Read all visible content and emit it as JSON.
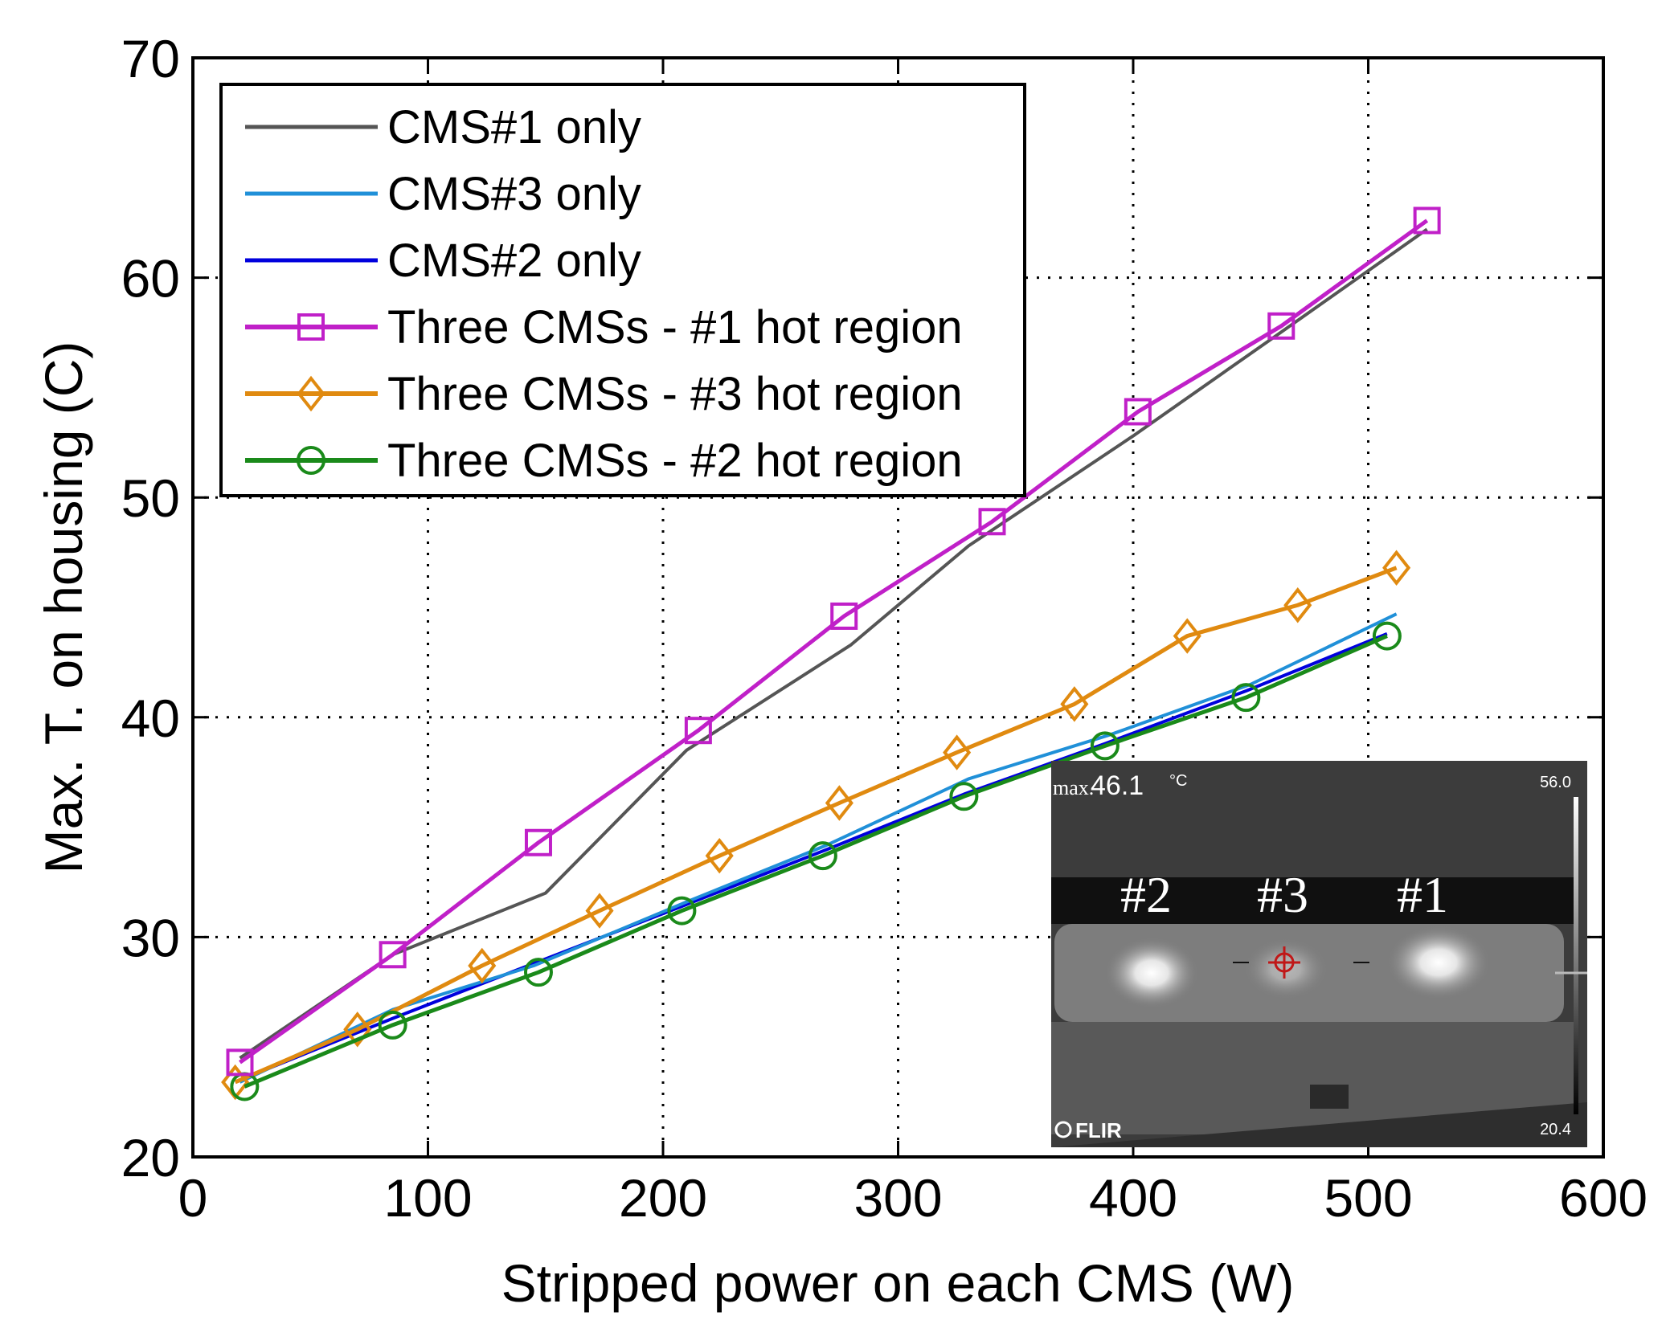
{
  "chart_data": {
    "type": "line",
    "title": "",
    "xlabel": "Stripped power on each CMS (W)",
    "ylabel": "Max. T. on housing (C)",
    "xlim": [
      0,
      600
    ],
    "ylim": [
      20,
      70
    ],
    "xticks": [
      0,
      100,
      200,
      300,
      400,
      500,
      600
    ],
    "yticks": [
      20,
      30,
      40,
      50,
      60,
      70
    ],
    "grid": true,
    "legend_position": "top-left",
    "series": [
      {
        "name": "CMS#1 only",
        "color": "#555555",
        "marker": "none",
        "x": [
          20,
          85,
          150,
          210,
          280,
          330,
          400,
          460,
          525
        ],
        "y": [
          24.5,
          29.2,
          32.0,
          38.5,
          43.3,
          47.8,
          52.8,
          57.3,
          62.2
        ]
      },
      {
        "name": "CMS#3 only",
        "color": "#2090d8",
        "marker": "none",
        "x": [
          20,
          85,
          145,
          210,
          270,
          330,
          390,
          450,
          512
        ],
        "y": [
          23.4,
          26.7,
          28.7,
          31.6,
          34.2,
          37.2,
          39.2,
          41.5,
          44.7
        ]
      },
      {
        "name": "CMS#2 only",
        "color": "#0000dd",
        "marker": "none",
        "x": [
          20,
          85,
          145,
          208,
          270,
          328,
          388,
          448,
          508
        ],
        "y": [
          23.5,
          26.3,
          28.8,
          31.4,
          34.0,
          36.5,
          38.8,
          41.2,
          43.8
        ]
      },
      {
        "name": "Three CMSs - #1 hot region",
        "color": "#c020c8",
        "marker": "square",
        "x": [
          20,
          85,
          147,
          215,
          277,
          340,
          402,
          463,
          525
        ],
        "y": [
          24.3,
          29.2,
          34.3,
          39.4,
          44.6,
          48.9,
          53.9,
          57.8,
          62.6
        ]
      },
      {
        "name": "Three CMSs - #3 hot region",
        "color": "#e08a10",
        "marker": "diamond",
        "x": [
          18,
          70,
          123,
          173,
          224,
          275,
          325,
          375,
          423,
          470,
          512
        ],
        "y": [
          23.4,
          25.8,
          28.7,
          31.2,
          33.7,
          36.1,
          38.4,
          40.6,
          43.7,
          45.1,
          46.8
        ]
      },
      {
        "name": "Three CMSs - #2 hot region",
        "color": "#1a8a1a",
        "marker": "circle",
        "x": [
          22,
          85,
          147,
          208,
          268,
          328,
          388,
          448,
          508
        ],
        "y": [
          23.2,
          26.0,
          28.4,
          31.2,
          33.7,
          36.4,
          38.7,
          40.9,
          43.7
        ]
      }
    ]
  },
  "inset": {
    "max_label": "max.",
    "max_value": "46.1",
    "unit": "°C",
    "scale_max": "56.0",
    "scale_min": "20.4",
    "brand": "FLIR",
    "labels": [
      "#2",
      "#3",
      "#1"
    ]
  }
}
